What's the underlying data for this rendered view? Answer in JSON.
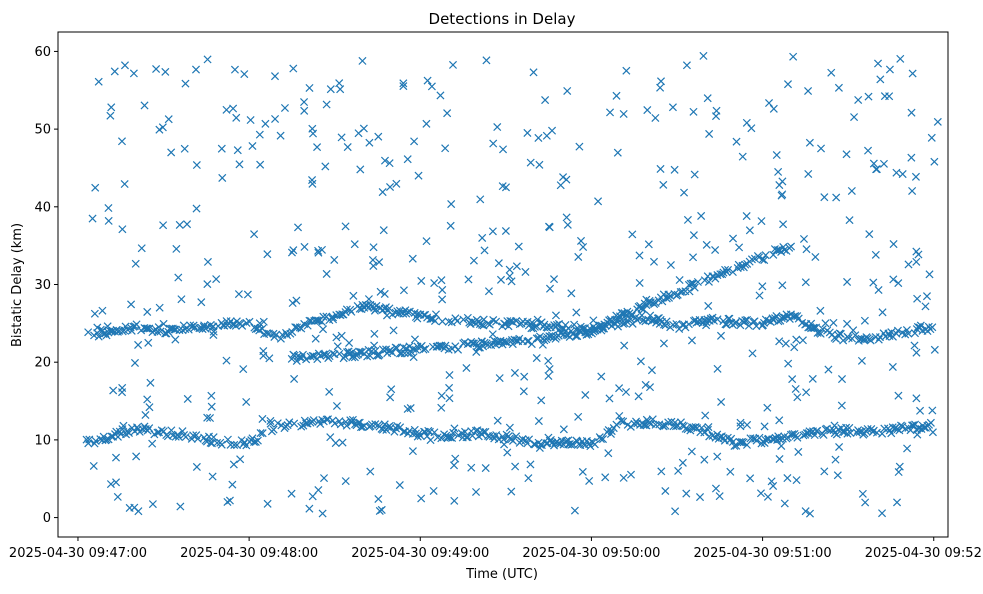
{
  "chart_data": {
    "type": "scatter",
    "title": "Detections in Delay",
    "xlabel": "Time (UTC)",
    "ylabel": "Bistatic Delay (km)",
    "marker": "x",
    "color": "#1f77b4",
    "grid": false,
    "legend": "none",
    "xlim": [
      "2025-04-30 09:46:53",
      "2025-04-30 09:52:05"
    ],
    "ylim": [
      -2.5,
      62.5
    ],
    "x_ticks": [
      "2025-04-30 09:47:00",
      "2025-04-30 09:48:00",
      "2025-04-30 09:49:00",
      "2025-04-30 09:50:00",
      "2025-04-30 09:51:00",
      "2025-04-30 09:52:00"
    ],
    "y_ticks": [
      0,
      10,
      20,
      30,
      40,
      50,
      60
    ],
    "series": [
      {
        "values_note": "",
        "tracks": [
          {
            "x": [
              "2025-04-30 09:47:03",
              "2025-04-30 09:47:10",
              "2025-04-30 09:47:20",
              "2025-04-30 09:47:30",
              "2025-04-30 09:47:40",
              "2025-04-30 09:47:50",
              "2025-04-30 09:48:00",
              "2025-04-30 09:48:10",
              "2025-04-30 09:48:20",
              "2025-04-30 09:48:30",
              "2025-04-30 09:48:40",
              "2025-04-30 09:48:50",
              "2025-04-30 09:49:00",
              "2025-04-30 09:49:10",
              "2025-04-30 09:49:20",
              "2025-04-30 09:49:30",
              "2025-04-30 09:49:40",
              "2025-04-30 09:49:50",
              "2025-04-30 09:50:00",
              "2025-04-30 09:50:10",
              "2025-04-30 09:50:20",
              "2025-04-30 09:50:30",
              "2025-04-30 09:50:40",
              "2025-04-30 09:50:50",
              "2025-04-30 09:51:00",
              "2025-04-30 09:51:10",
              "2025-04-30 09:51:20",
              "2025-04-30 09:51:30",
              "2025-04-30 09:51:40",
              "2025-04-30 09:51:50",
              "2025-04-30 09:52:00"
            ],
            "y": [
              9.8,
              10.2,
              11.5,
              11.0,
              10.5,
              9.8,
              9.6,
              11.8,
              12.2,
              12.4,
              12.0,
              11.5,
              10.8,
              10.5,
              10.8,
              10.3,
              9.8,
              9.6,
              9.5,
              12.0,
              12.3,
              12.1,
              11.0,
              9.6,
              10.0,
              10.5,
              11.0,
              11.2,
              11.0,
              11.5,
              12.0
            ]
          },
          {
            "x": [
              "2025-04-30 09:47:03",
              "2025-04-30 09:47:10",
              "2025-04-30 09:47:20",
              "2025-04-30 09:47:30",
              "2025-04-30 09:47:40",
              "2025-04-30 09:47:50",
              "2025-04-30 09:48:00",
              "2025-04-30 09:48:10",
              "2025-04-30 09:48:20",
              "2025-04-30 09:48:30",
              "2025-04-30 09:48:40",
              "2025-04-30 09:48:50",
              "2025-04-30 09:49:00",
              "2025-04-30 09:49:10",
              "2025-04-30 09:49:20",
              "2025-04-30 09:49:30",
              "2025-04-30 09:49:40",
              "2025-04-30 09:49:50",
              "2025-04-30 09:50:00",
              "2025-04-30 09:50:10",
              "2025-04-30 09:50:20",
              "2025-04-30 09:50:30",
              "2025-04-30 09:50:40",
              "2025-04-30 09:50:50",
              "2025-04-30 09:51:00",
              "2025-04-30 09:51:10",
              "2025-04-30 09:51:20",
              "2025-04-30 09:51:30",
              "2025-04-30 09:51:40",
              "2025-04-30 09:51:50",
              "2025-04-30 09:52:00"
            ],
            "y": [
              23.6,
              23.8,
              24.5,
              24.0,
              24.5,
              25.0,
              24.8,
              23.2,
              24.8,
              26.0,
              27.2,
              26.5,
              26.0,
              25.5,
              25.2,
              25.0,
              24.8,
              24.5,
              24.2,
              25.0,
              25.8,
              24.5,
              25.5,
              25.2,
              25.0,
              26.0,
              24.0,
              23.0,
              23.2,
              24.0,
              24.5
            ]
          },
          {
            "x": [
              "2025-04-30 09:48:15",
              "2025-04-30 09:48:25",
              "2025-04-30 09:48:35",
              "2025-04-30 09:49:30",
              "2025-04-30 09:49:40",
              "2025-04-30 09:49:50",
              "2025-04-30 09:50:00",
              "2025-04-30 09:50:10",
              "2025-04-30 09:50:20",
              "2025-04-30 09:50:30",
              "2025-04-30 09:50:40",
              "2025-04-30 09:50:50",
              "2025-04-30 09:51:00",
              "2025-04-30 09:51:10"
            ],
            "y": [
              20.5,
              20.8,
              21.0,
              22.5,
              22.8,
              23.5,
              24.0,
              25.8,
              27.5,
              29.0,
              30.5,
              32.0,
              33.5,
              35.0
            ]
          }
        ],
        "scatter": {
          "x_range": [
            "2025-04-30 09:47:03",
            "2025-04-30 09:52:02"
          ],
          "y_range": [
            0.5,
            59.8
          ],
          "count": 560
        }
      }
    ]
  }
}
